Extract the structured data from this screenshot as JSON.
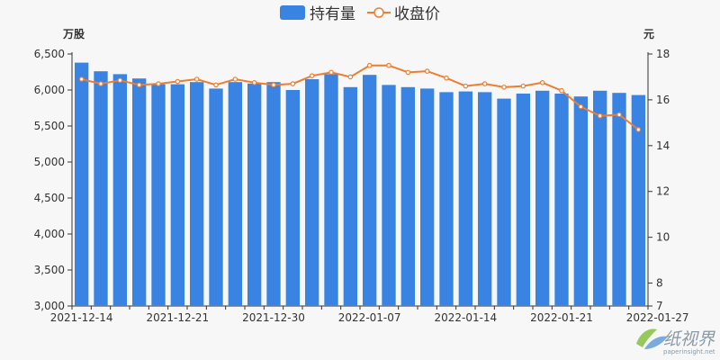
{
  "chart_data": {
    "type": "bar",
    "legend": {
      "placement": "top-center"
    },
    "y_left": {
      "unit": "万股",
      "ylim": [
        3000,
        6500
      ],
      "ticks": [
        3000,
        3500,
        4000,
        4500,
        5000,
        5500,
        6000,
        6500
      ]
    },
    "y_right": {
      "unit": "元",
      "ylim": [
        7,
        18
      ],
      "ticks": [
        7,
        8,
        10,
        12,
        14,
        16,
        18
      ]
    },
    "x_tick_labels": [
      "2021-12-14",
      "2021-12-21",
      "2021-12-30",
      "2022-01-07",
      "2022-01-14",
      "2022-01-21",
      "2022-01-27"
    ],
    "x_tick_indices": [
      0,
      5,
      10,
      15,
      20,
      25,
      30
    ],
    "grid": false,
    "series": [
      {
        "name": "持有量",
        "kind": "bar",
        "axis": "left",
        "color": "#3984e3",
        "values": [
          6380,
          6260,
          6220,
          6160,
          6080,
          6080,
          6110,
          6020,
          6110,
          6090,
          6110,
          6000,
          6150,
          6220,
          6040,
          6210,
          6070,
          6040,
          6020,
          5970,
          5980,
          5970,
          5880,
          5950,
          5990,
          5950,
          5910,
          5990,
          5960,
          5930
        ]
      },
      {
        "name": "收盘价",
        "kind": "line",
        "axis": "right",
        "color": "#ec7e32",
        "values": [
          16.9,
          16.7,
          16.85,
          16.65,
          16.7,
          16.8,
          16.9,
          16.65,
          16.9,
          16.75,
          16.65,
          16.7,
          17.05,
          17.2,
          17.0,
          17.5,
          17.5,
          17.2,
          17.25,
          16.95,
          16.6,
          16.7,
          16.55,
          16.6,
          16.75,
          16.4,
          15.7,
          15.3,
          15.35,
          14.7
        ]
      }
    ]
  },
  "watermark": {
    "text": "纸视界",
    "sub": "paperinsight.net"
  }
}
